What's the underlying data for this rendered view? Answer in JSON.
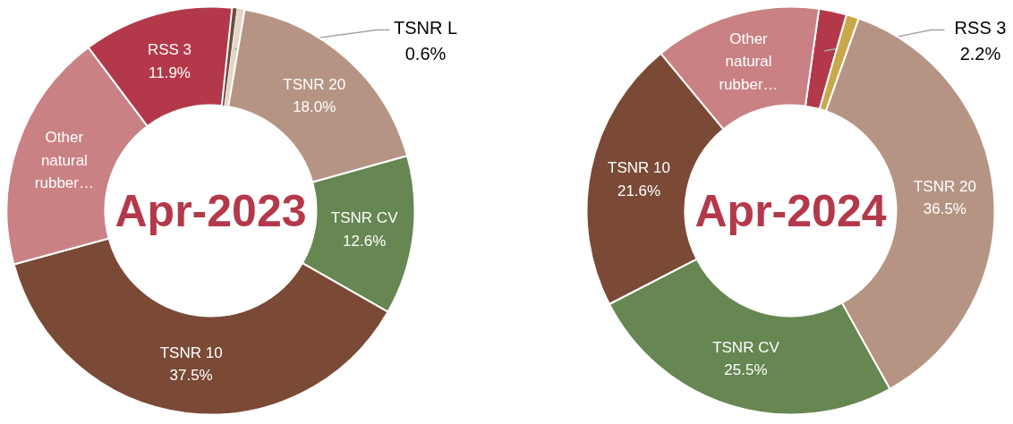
{
  "chart_data": [
    {
      "type": "donut",
      "title": "Apr-2023",
      "categories": [
        null,
        "TSNR L",
        "TSNR 20",
        "TSNR CV",
        "TSNR 10",
        "Other natural rubber…",
        "RSS 3"
      ],
      "values": [
        0.4,
        0.6,
        18.0,
        12.6,
        37.5,
        19.0,
        11.9
      ],
      "value_labels": [
        null,
        "0.6%",
        "18.0%",
        "12.6%",
        "37.5%",
        null,
        "11.9%"
      ],
      "colors": [
        "#6e4b3a",
        "#e3d6c8",
        "#b69484",
        "#668652",
        "#7a4a36",
        "#c98184",
        "#b3394a"
      ]
    },
    {
      "type": "donut",
      "title": "Apr-2024",
      "categories": [
        "RSS 3",
        null,
        "TSNR 20",
        "TSNR CV",
        "TSNR 10",
        "Other natural rubber…"
      ],
      "values": [
        2.2,
        1.0,
        36.5,
        25.5,
        21.6,
        13.2
      ],
      "value_labels": [
        "2.2%",
        null,
        "36.5%",
        "25.5%",
        "21.6%",
        null
      ],
      "colors": [
        "#b3394a",
        "#c8a84a",
        "#b69484",
        "#668652",
        "#7a4a36",
        "#c98184"
      ]
    }
  ]
}
